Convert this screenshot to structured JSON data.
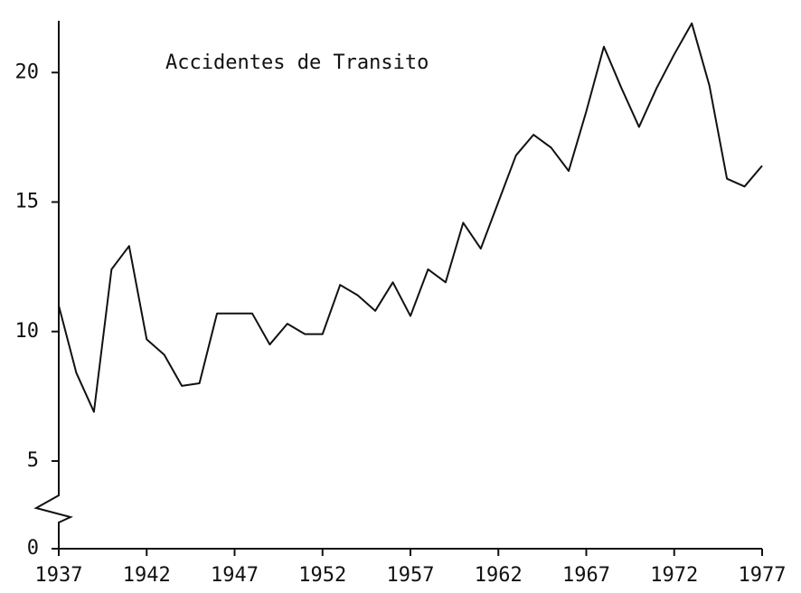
{
  "chart_data": {
    "type": "line",
    "title": "Accidentes de Transito",
    "x": [
      1937,
      1938,
      1939,
      1940,
      1941,
      1942,
      1943,
      1944,
      1945,
      1946,
      1947,
      1948,
      1949,
      1950,
      1951,
      1952,
      1953,
      1954,
      1955,
      1956,
      1957,
      1958,
      1959,
      1960,
      1961,
      1962,
      1963,
      1964,
      1965,
      1966,
      1967,
      1968,
      1969,
      1970,
      1971,
      1972,
      1973,
      1974,
      1975,
      1976,
      1977
    ],
    "series": [
      {
        "color": "#111111",
        "values": [
          11.0,
          8.4,
          6.9,
          12.4,
          13.3,
          9.7,
          9.1,
          7.9,
          8.0,
          10.7,
          10.7,
          10.7,
          9.5,
          10.3,
          9.9,
          9.9,
          11.8,
          11.4,
          10.8,
          11.9,
          10.6,
          12.4,
          11.9,
          14.2,
          13.2,
          15.0,
          16.8,
          17.6,
          17.1,
          16.2,
          18.5,
          21.0,
          19.4,
          17.9,
          19.4,
          20.7,
          21.9,
          19.5,
          15.9,
          15.6,
          16.4
        ]
      }
    ],
    "xlim": [
      1937,
      1977
    ],
    "xticks": [
      1937,
      1942,
      1947,
      1952,
      1957,
      1962,
      1967,
      1972,
      1977
    ],
    "ylim": [
      0,
      22
    ],
    "yticks": [
      0,
      5,
      10,
      15,
      20
    ],
    "axis_break": true
  }
}
